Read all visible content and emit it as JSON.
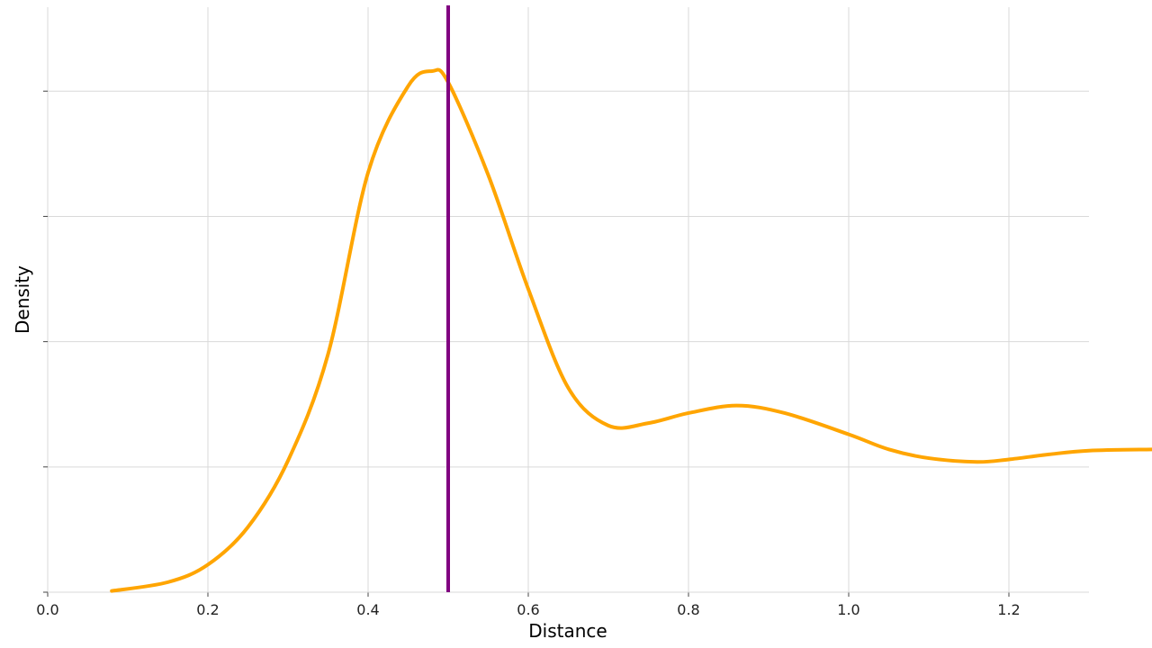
{
  "chart_data": {
    "type": "line",
    "xlabel": "Distance",
    "ylabel": "Density",
    "xlim": [
      0.0,
      1.3
    ],
    "ylim": [
      0,
      4.67
    ],
    "x_ticks": [
      0.0,
      0.2,
      0.4,
      0.6,
      0.8,
      1.0,
      1.2
    ],
    "x_tick_labels": [
      "0.0",
      "0.2",
      "0.4",
      "0.6",
      "0.8",
      "1.0",
      "1.2"
    ],
    "y_ticks": [
      0,
      1,
      2,
      3,
      4
    ],
    "y_tick_labels": [
      "",
      "",
      "",
      "",
      ""
    ],
    "grid": true,
    "legend": "none",
    "series": [
      {
        "color": "#FFA500",
        "points": [
          [
            0.08,
            0.01
          ],
          [
            0.15,
            0.08
          ],
          [
            0.2,
            0.22
          ],
          [
            0.25,
            0.52
          ],
          [
            0.3,
            1.05
          ],
          [
            0.35,
            1.9
          ],
          [
            0.4,
            3.35
          ],
          [
            0.45,
            4.04
          ],
          [
            0.48,
            4.16
          ],
          [
            0.5,
            4.07
          ],
          [
            0.55,
            3.33
          ],
          [
            0.6,
            2.42
          ],
          [
            0.65,
            1.63
          ],
          [
            0.7,
            1.33
          ],
          [
            0.75,
            1.35
          ],
          [
            0.8,
            1.43
          ],
          [
            0.86,
            1.49
          ],
          [
            0.92,
            1.43
          ],
          [
            1.0,
            1.26
          ],
          [
            1.05,
            1.14
          ],
          [
            1.1,
            1.07
          ],
          [
            1.16,
            1.04
          ],
          [
            1.2,
            1.06
          ],
          [
            1.25,
            1.1
          ],
          [
            1.3,
            1.13
          ],
          [
            1.38,
            1.14
          ]
        ]
      }
    ],
    "reference_line": {
      "x": 0.5,
      "color": "#800080"
    }
  }
}
